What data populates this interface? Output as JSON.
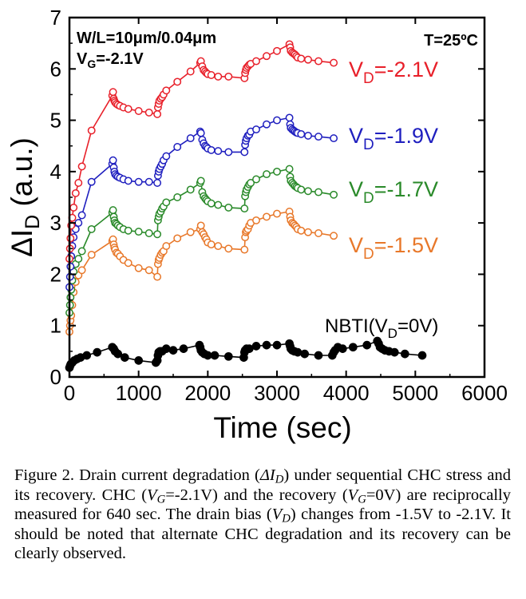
{
  "chart_data": {
    "type": "scatter",
    "xlabel": "Time (sec)",
    "ylabel_main": "ΔI",
    "ylabel_sub": "D",
    "ylabel_unit": " (a.u.)",
    "xlim": [
      0,
      6000
    ],
    "ylim": [
      0,
      7
    ],
    "xticks": [
      0,
      1000,
      2000,
      3000,
      4000,
      5000,
      6000
    ],
    "yticks": [
      0,
      1,
      2,
      3,
      4,
      5,
      6,
      7
    ],
    "grid": false,
    "annotations": {
      "wl": "W/L=10μm/0.04μm",
      "vg_main": "V",
      "vg_sub": "G",
      "vg_rest": "=-2.1V",
      "temp": "T=25ºC"
    },
    "series": [
      {
        "label_prefix": "V",
        "label_sub": "D",
        "label_suffix": "=-1.5V",
        "color": "#e8782a",
        "x": [
          0,
          8,
          15,
          25,
          40,
          60,
          90,
          130,
          180,
          320,
          620,
          630,
          640,
          650,
          660,
          680,
          700,
          730,
          780,
          850,
          1000,
          1150,
          1270,
          1280,
          1290,
          1300,
          1320,
          1340,
          1360,
          1400,
          1560,
          1750,
          1890,
          1900,
          1920,
          1940,
          1960,
          1980,
          2000,
          2050,
          2150,
          2300,
          2530,
          2540,
          2550,
          2560,
          2580,
          2600,
          2620,
          2700,
          2850,
          3000,
          3180,
          3190,
          3200,
          3220,
          3240,
          3260,
          3280,
          3300,
          3350,
          3450,
          3600,
          3820
        ],
        "y": [
          0.88,
          1.0,
          1.1,
          1.2,
          1.4,
          1.65,
          1.85,
          1.98,
          2.08,
          2.38,
          2.65,
          2.68,
          2.58,
          2.52,
          2.48,
          2.42,
          2.4,
          2.35,
          2.28,
          2.22,
          2.12,
          2.08,
          1.95,
          2.2,
          2.28,
          2.32,
          2.38,
          2.42,
          2.45,
          2.55,
          2.7,
          2.82,
          2.88,
          2.95,
          2.82,
          2.78,
          2.72,
          2.68,
          2.62,
          2.58,
          2.55,
          2.5,
          2.48,
          2.72,
          2.82,
          2.85,
          2.88,
          2.95,
          3.0,
          3.05,
          3.12,
          3.18,
          3.22,
          3.12,
          3.05,
          3.0,
          2.98,
          2.95,
          2.92,
          2.88,
          2.85,
          2.82,
          2.8,
          2.75
        ]
      },
      {
        "label_prefix": "V",
        "label_sub": "D",
        "label_suffix": "=-1.7V",
        "color": "#2a8a2a",
        "x": [
          0,
          8,
          15,
          25,
          40,
          60,
          90,
          130,
          180,
          320,
          620,
          630,
          640,
          650,
          660,
          680,
          700,
          730,
          780,
          850,
          1000,
          1150,
          1270,
          1280,
          1290,
          1300,
          1320,
          1340,
          1360,
          1400,
          1560,
          1750,
          1890,
          1900,
          1920,
          1940,
          1960,
          1980,
          2000,
          2050,
          2150,
          2300,
          2530,
          2540,
          2550,
          2560,
          2580,
          2600,
          2620,
          2700,
          2850,
          3000,
          3180,
          3190,
          3200,
          3220,
          3240,
          3260,
          3280,
          3300,
          3350,
          3450,
          3600,
          3820
        ],
        "y": [
          1.25,
          1.4,
          1.55,
          1.7,
          1.88,
          2.05,
          2.2,
          2.3,
          2.45,
          2.88,
          3.2,
          3.25,
          3.12,
          3.05,
          3.0,
          2.98,
          2.95,
          2.92,
          2.88,
          2.85,
          2.83,
          2.8,
          2.78,
          3.05,
          3.12,
          3.18,
          3.22,
          3.28,
          3.32,
          3.4,
          3.5,
          3.65,
          3.78,
          3.82,
          3.6,
          3.52,
          3.48,
          3.45,
          3.42,
          3.38,
          3.35,
          3.3,
          3.28,
          3.52,
          3.6,
          3.65,
          3.7,
          3.75,
          3.78,
          3.85,
          3.95,
          4.0,
          4.05,
          3.9,
          3.82,
          3.78,
          3.75,
          3.72,
          3.7,
          3.68,
          3.65,
          3.62,
          3.6,
          3.55
        ]
      },
      {
        "label_prefix": "V",
        "label_sub": "D",
        "label_suffix": "=-1.9V",
        "color": "#1f1fbf",
        "x": [
          0,
          8,
          15,
          25,
          40,
          60,
          90,
          130,
          180,
          320,
          620,
          630,
          640,
          650,
          660,
          680,
          700,
          730,
          780,
          850,
          1000,
          1150,
          1270,
          1280,
          1290,
          1300,
          1320,
          1340,
          1360,
          1400,
          1560,
          1750,
          1890,
          1900,
          1920,
          1940,
          1960,
          1980,
          2000,
          2050,
          2150,
          2300,
          2530,
          2540,
          2550,
          2560,
          2580,
          2600,
          2620,
          2700,
          2850,
          3000,
          3180,
          3190,
          3200,
          3220,
          3240,
          3260,
          3280,
          3300,
          3350,
          3450,
          3600,
          3820
        ],
        "y": [
          1.75,
          1.95,
          2.15,
          2.35,
          2.55,
          2.72,
          2.88,
          3.0,
          3.15,
          3.8,
          4.15,
          4.22,
          4.08,
          4.0,
          3.95,
          3.92,
          3.9,
          3.88,
          3.85,
          3.82,
          3.8,
          3.8,
          3.78,
          3.92,
          4.0,
          4.05,
          4.1,
          4.15,
          4.22,
          4.3,
          4.48,
          4.65,
          4.78,
          4.75,
          4.62,
          4.55,
          4.5,
          4.48,
          4.45,
          4.42,
          4.4,
          4.38,
          4.38,
          4.52,
          4.6,
          4.65,
          4.7,
          4.72,
          4.78,
          4.82,
          4.92,
          5.0,
          5.05,
          4.92,
          4.85,
          4.82,
          4.8,
          4.78,
          4.76,
          4.75,
          4.73,
          4.7,
          4.68,
          4.65
        ]
      },
      {
        "label_prefix": "V",
        "label_sub": "D",
        "label_suffix": "=-2.1V",
        "color": "#e8202a",
        "x": [
          0,
          8,
          15,
          25,
          40,
          60,
          90,
          130,
          180,
          320,
          620,
          630,
          640,
          650,
          660,
          680,
          700,
          730,
          780,
          850,
          1000,
          1150,
          1270,
          1280,
          1290,
          1300,
          1320,
          1340,
          1360,
          1400,
          1560,
          1750,
          1890,
          1900,
          1920,
          1940,
          1960,
          1980,
          2000,
          2050,
          2150,
          2300,
          2530,
          2540,
          2550,
          2560,
          2580,
          2600,
          2620,
          2700,
          2850,
          3000,
          3180,
          3190,
          3200,
          3220,
          3240,
          3260,
          3280,
          3300,
          3350,
          3450,
          3600,
          3820
        ],
        "y": [
          2.3,
          2.5,
          2.7,
          2.95,
          3.1,
          3.3,
          3.58,
          3.78,
          4.1,
          4.8,
          5.48,
          5.55,
          5.42,
          5.38,
          5.35,
          5.32,
          5.3,
          5.28,
          5.25,
          5.22,
          5.18,
          5.15,
          5.12,
          5.25,
          5.32,
          5.38,
          5.42,
          5.45,
          5.5,
          5.58,
          5.75,
          5.95,
          6.12,
          6.15,
          6.05,
          5.98,
          5.95,
          5.92,
          5.9,
          5.88,
          5.85,
          5.85,
          5.82,
          5.92,
          5.98,
          6.02,
          6.05,
          6.08,
          6.1,
          6.15,
          6.25,
          6.35,
          6.48,
          6.42,
          6.35,
          6.32,
          6.3,
          6.28,
          6.25,
          6.22,
          6.2,
          6.18,
          6.15,
          6.12
        ]
      },
      {
        "label_prefix": "NBTI(V",
        "label_sub": "D",
        "label_suffix": "=0V)",
        "color": "#000000",
        "filled": true,
        "x": [
          0,
          10,
          20,
          40,
          70,
          110,
          160,
          250,
          400,
          620,
          640,
          660,
          700,
          800,
          1000,
          1250,
          1270,
          1280,
          1290,
          1310,
          1340,
          1400,
          1500,
          1650,
          1880,
          1890,
          1900,
          1920,
          1950,
          2000,
          2100,
          2300,
          2520,
          2530,
          2540,
          2560,
          2600,
          2700,
          2850,
          3000,
          3180,
          3190,
          3200,
          3220,
          3250,
          3300,
          3400,
          3600,
          3800,
          3820,
          3840,
          3880,
          3950,
          4100,
          4300,
          4450,
          4470,
          4490,
          4520,
          4560,
          4620,
          4700,
          4850,
          5100
        ],
        "y": [
          0.18,
          0.22,
          0.25,
          0.28,
          0.32,
          0.35,
          0.38,
          0.42,
          0.48,
          0.58,
          0.55,
          0.5,
          0.45,
          0.38,
          0.32,
          0.28,
          0.32,
          0.42,
          0.48,
          0.5,
          0.5,
          0.55,
          0.52,
          0.55,
          0.62,
          0.58,
          0.52,
          0.48,
          0.45,
          0.42,
          0.42,
          0.4,
          0.38,
          0.48,
          0.52,
          0.55,
          0.55,
          0.6,
          0.62,
          0.62,
          0.65,
          0.6,
          0.55,
          0.52,
          0.5,
          0.48,
          0.45,
          0.42,
          0.42,
          0.48,
          0.52,
          0.58,
          0.55,
          0.58,
          0.62,
          0.7,
          0.65,
          0.58,
          0.55,
          0.52,
          0.5,
          0.48,
          0.45,
          0.42
        ]
      }
    ]
  },
  "caption": {
    "p1": "Figure 2. Drain current degradation (",
    "p2": "ΔI",
    "p3": "D",
    "p4": ") under sequential CHC stress and its recovery. CHC (",
    "p5": "V",
    "p6": "G",
    "p7": "=-2.1V) and the recovery (",
    "p8": "V",
    "p9": "G",
    "p10": "=0V) are reciprocally measured for 640 sec. The drain bias (",
    "p11": "V",
    "p12": "D",
    "p13": ") changes from -1.5V to -2.1V. It should be noted that alternate CHC degradation and its recovery can be clearly observed."
  }
}
